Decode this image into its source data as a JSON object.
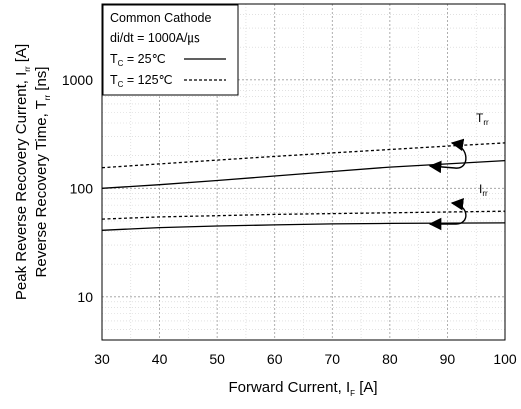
{
  "chart_data": {
    "type": "line",
    "xlabel": "Forward Current, I",
    "xlabel_sub": "F",
    "xlabel_unit": "[A]",
    "ylabel_line1": "Peak Reverse Recovery Current, I",
    "ylabel_line1_sub": "rr",
    "ylabel_line1_unit": "[A]",
    "ylabel_line2": "Reverse Recovery Time, T",
    "ylabel_line2_sub": "rr",
    "ylabel_line2_unit": "[ns]",
    "x_ticks": [
      "30",
      "40",
      "50",
      "60",
      "70",
      "80",
      "90",
      "100"
    ],
    "y_ticks": [
      "10",
      "100",
      "1000"
    ],
    "xlim": [
      30,
      100
    ],
    "ylim": [
      4,
      5000
    ],
    "y_scale": "log",
    "grid": true,
    "legend": {
      "position": "top-left",
      "title": "Common Cathode",
      "condition": "di/dt = 1000A/㎲",
      "entries": [
        {
          "prefix": "T",
          "sub": "C",
          "suffix": " =  25℃",
          "style": "solid"
        },
        {
          "prefix": "T",
          "sub": "C",
          "suffix": " = 125℃",
          "style": "dashed"
        }
      ]
    },
    "series": [
      {
        "label_group": "Trr",
        "style": "solid",
        "x": [
          30,
          40,
          50,
          60,
          70,
          80,
          90,
          100
        ],
        "y": [
          100,
          108,
          118,
          130,
          143,
          157,
          168,
          180
        ]
      },
      {
        "label_group": "Trr",
        "style": "dashed",
        "x": [
          30,
          40,
          50,
          60,
          70,
          80,
          90,
          100
        ],
        "y": [
          155,
          168,
          182,
          197,
          212,
          228,
          245,
          262
        ]
      },
      {
        "label_group": "Irr",
        "style": "solid",
        "x": [
          30,
          40,
          50,
          60,
          70,
          80,
          90,
          100
        ],
        "y": [
          41,
          43.5,
          45,
          46,
          47,
          47.5,
          47.8,
          48
        ]
      },
      {
        "label_group": "Irr",
        "style": "dashed",
        "x": [
          30,
          40,
          50,
          60,
          70,
          80,
          90,
          100
        ],
        "y": [
          52,
          54.5,
          56,
          57.5,
          58.5,
          59.5,
          60.5,
          61.5
        ]
      }
    ],
    "annotations": [
      {
        "prefix": "T",
        "sub": "rr"
      },
      {
        "prefix": "I",
        "sub": "rr"
      }
    ]
  }
}
